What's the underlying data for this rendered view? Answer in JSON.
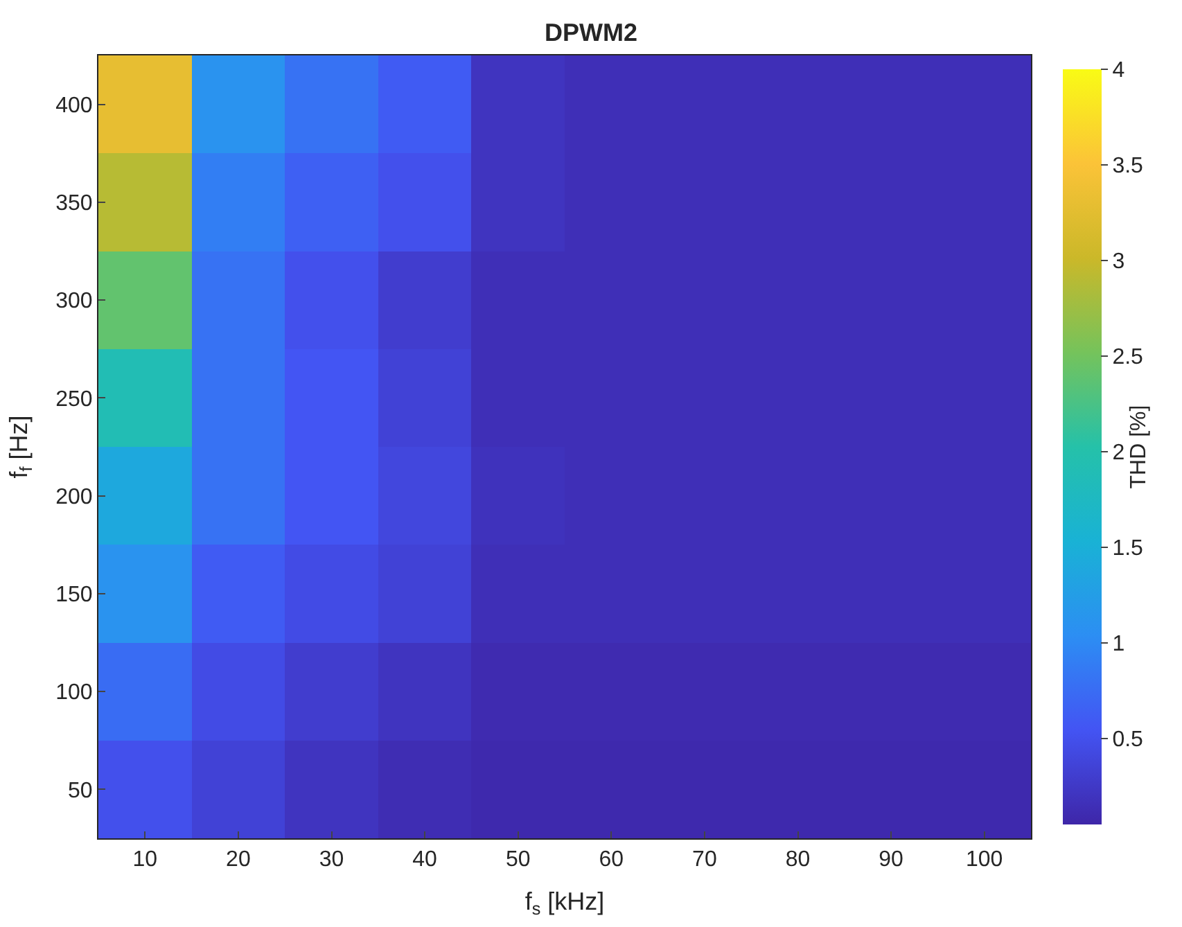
{
  "chart_data": {
    "type": "heatmap",
    "title": "DPWM2",
    "xlabel": "f$_{s}$ [kHz]",
    "ylabel": "f$_{f}$ [Hz]",
    "clabel": "THD [%]",
    "categories": [
      "10",
      "20",
      "30",
      "40",
      "50",
      "60",
      "70",
      "80",
      "90",
      "100"
    ],
    "y_categories": [
      "400",
      "350",
      "300",
      "250",
      "200",
      "150",
      "100",
      "50"
    ],
    "cells": [
      [
        3.3,
        1.1,
        0.8,
        0.6,
        0.2,
        0.15,
        0.15,
        0.15,
        0.15,
        0.15
      ],
      [
        2.9,
        0.9,
        0.65,
        0.5,
        0.2,
        0.15,
        0.15,
        0.15,
        0.15,
        0.15
      ],
      [
        2.4,
        0.8,
        0.5,
        0.3,
        0.15,
        0.15,
        0.15,
        0.15,
        0.15,
        0.15
      ],
      [
        1.9,
        0.8,
        0.55,
        0.35,
        0.15,
        0.15,
        0.15,
        0.15,
        0.15,
        0.15
      ],
      [
        1.4,
        0.8,
        0.55,
        0.4,
        0.18,
        0.15,
        0.15,
        0.15,
        0.15,
        0.15
      ],
      [
        1.1,
        0.6,
        0.45,
        0.35,
        0.15,
        0.15,
        0.15,
        0.15,
        0.15,
        0.15
      ],
      [
        0.75,
        0.45,
        0.3,
        0.2,
        0.1,
        0.1,
        0.1,
        0.1,
        0.1,
        0.1
      ],
      [
        0.5,
        0.35,
        0.2,
        0.12,
        0.08,
        0.08,
        0.08,
        0.08,
        0.08,
        0.08
      ]
    ],
    "clim": [
      0.05,
      4
    ],
    "cticks": [
      0.5,
      1,
      1.5,
      2,
      2.5,
      3,
      3.5,
      4
    ]
  }
}
